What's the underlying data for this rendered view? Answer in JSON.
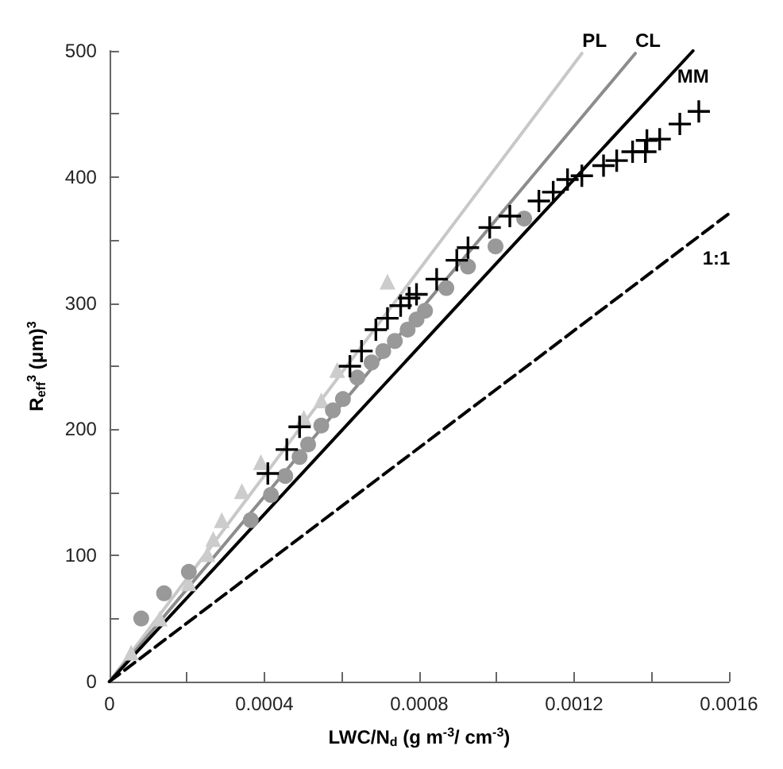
{
  "chart_data": {
    "type": "scatter",
    "xlabel": "LWC/N$_{d}$ (g m$^{-3}$/ cm$^{-3}$)",
    "ylabel": "R$_{eff}$$^{3}$ (μm)$^{3}$",
    "xlim": [
      0,
      0.0016
    ],
    "ylim": [
      0,
      500
    ],
    "xticks": [
      0,
      {
        "value": 0.0002,
        "label": null
      },
      0.0004,
      {
        "value": 0.0006,
        "label": null
      },
      0.0008,
      {
        "value": 0.001,
        "label": null
      },
      0.0012,
      {
        "value": 0.0014,
        "label": null
      },
      0.0016
    ],
    "yticks": [
      0,
      {
        "value": 50,
        "label": null
      },
      100,
      {
        "value": 150,
        "label": null
      },
      200,
      {
        "value": 250,
        "label": null
      },
      300,
      {
        "value": 350,
        "label": null
      },
      400,
      {
        "value": 450,
        "label": null
      },
      500
    ],
    "grid": false,
    "legend": false,
    "series": [
      {
        "type": "line",
        "name": "1:1",
        "color": "#000000",
        "line_style": "dashed",
        "marker": "none",
        "x": [
          0,
          0.0016
        ],
        "values": [
          0,
          371
        ]
      },
      {
        "type": "line",
        "name": "PL",
        "color": "#c8c8c8",
        "line_style": "solid",
        "marker": "none",
        "x": [
          0,
          0.00122
        ],
        "values": [
          0,
          498
        ]
      },
      {
        "type": "line",
        "name": "CL",
        "color": "#8c8c8c",
        "line_style": "solid",
        "marker": "none",
        "x": [
          0,
          0.001358
        ],
        "values": [
          0,
          498
        ]
      },
      {
        "type": "line",
        "name": "MM",
        "color": "#000000",
        "line_style": "solid",
        "marker": "none",
        "x": [
          0,
          0.001507
        ],
        "values": [
          0,
          500
        ]
      },
      {
        "color": "#cccccc",
        "marker": "triangle",
        "x": [
          0.000718,
          0.000588,
          0.000547,
          0.000502,
          0.000391,
          0.000342,
          0.00029,
          0.000268,
          0.000253,
          0.000205,
          0.00013,
          5.6e-05
        ],
        "values": [
          317,
          247,
          223,
          209,
          174,
          151,
          128,
          113,
          101,
          78,
          50,
          23
        ]
      },
      {
        "color": "#999999",
        "marker": "circle",
        "x": [
          0.001071,
          0.000997,
          0.000926,
          0.00087,
          0.000815,
          0.000793,
          0.00077,
          0.000737,
          0.000707,
          0.000677,
          0.00064,
          0.000603,
          0.000577,
          0.000547,
          0.000513,
          0.000491,
          0.000454,
          0.000417,
          0.000365,
          0.000205,
          0.000141,
          8.2e-05
        ],
        "values": [
          367,
          345,
          329,
          312,
          294,
          287,
          279,
          270,
          262,
          253,
          241,
          224,
          215,
          203,
          188,
          178,
          163,
          148,
          128,
          87,
          70,
          50
        ]
      },
      {
        "color": "#000000",
        "marker": "cross",
        "x": [
          0.001522,
          0.001473,
          0.001421,
          0.001388,
          0.001384,
          0.001351,
          0.00131,
          0.001276,
          0.00122,
          0.001183,
          0.001146,
          0.001109,
          0.001034,
          0.000982,
          0.000926,
          0.000897,
          0.000845,
          0.000793,
          0.000774,
          0.000752,
          0.000718,
          0.000688,
          0.000651,
          0.000621,
          0.000491,
          0.000458,
          0.000409
        ],
        "values": [
          452,
          442,
          430,
          429,
          420,
          420,
          413,
          409,
          401,
          398,
          388,
          381,
          369,
          360,
          344,
          334,
          319,
          307,
          304,
          298,
          288,
          279,
          262,
          250,
          202,
          184,
          165
        ]
      }
    ]
  }
}
